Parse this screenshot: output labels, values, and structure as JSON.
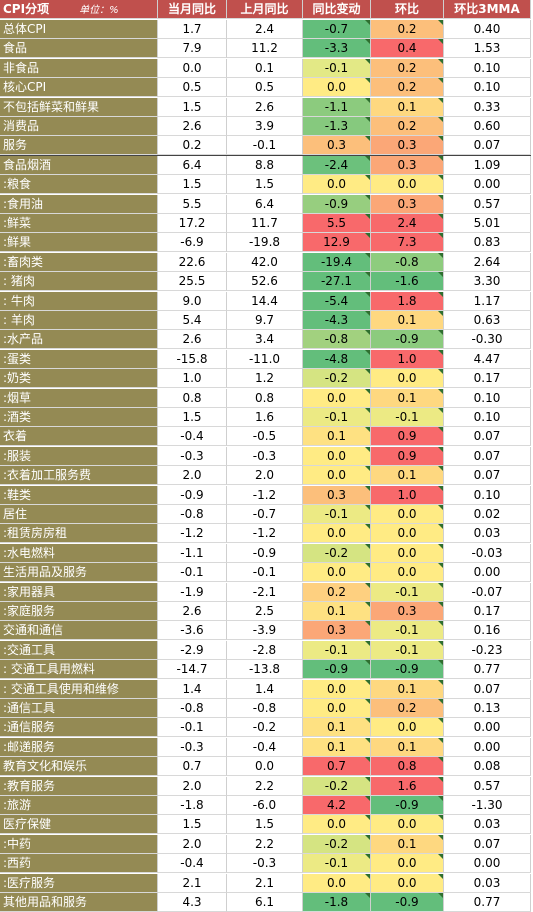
{
  "header": {
    "category": "CPI分项",
    "unit": "单位：%",
    "cols": [
      "当月同比",
      "上月同比",
      "同比变动",
      "环比",
      "环比3MMA"
    ]
  },
  "rows": [
    {
      "label": "总体CPI",
      "v": [
        "1.7",
        "2.4",
        "-0.7",
        "0.2",
        "0.40"
      ],
      "c": [
        "#63be7b",
        "#fcbf7b"
      ],
      "grp": false
    },
    {
      "label": "食品",
      "v": [
        "7.9",
        "11.2",
        "-3.3",
        "0.4",
        "1.53"
      ],
      "c": [
        "#63be7b",
        "#f8696b"
      ],
      "grp": false
    },
    {
      "label": "非食品",
      "v": [
        "0.0",
        "0.1",
        "-0.1",
        "0.2",
        "0.10"
      ],
      "c": [
        "#e3e986",
        "#fcbf7b"
      ],
      "grp": false
    },
    {
      "label": "核心CPI",
      "v": [
        "0.5",
        "0.5",
        "0.0",
        "0.2",
        "0.10"
      ],
      "c": [
        "#ffeb84",
        "#fcbf7b"
      ],
      "grp": true
    },
    {
      "label": "不包括鲜菜和鲜果",
      "v": [
        "1.5",
        "2.6",
        "-1.1",
        "0.1",
        "0.33"
      ],
      "c": [
        "#8ccb7e",
        "#fed880"
      ],
      "grp": false
    },
    {
      "label": "消费品",
      "v": [
        "2.6",
        "3.9",
        "-1.3",
        "0.2",
        "0.60"
      ],
      "c": [
        "#86c97e",
        "#fcbf7b"
      ],
      "grp": false
    },
    {
      "label": "服务",
      "v": [
        "0.2",
        "-0.1",
        "0.3",
        "0.3",
        "0.07"
      ],
      "c": [
        "#fcbf7b",
        "#fba777"
      ],
      "grp": false
    },
    {
      "label": "食品烟酒",
      "v": [
        "6.4",
        "8.8",
        "-2.4",
        "0.3",
        "1.09"
      ],
      "c": [
        "#6cc17c",
        "#fba777"
      ],
      "grp": true
    },
    {
      "label": ":粮食",
      "v": [
        "1.5",
        "1.5",
        "0.0",
        "0.0",
        "0.00"
      ],
      "c": [
        "#ffeb84",
        "#ffeb84"
      ],
      "grp": false
    },
    {
      "label": ":食用油",
      "v": [
        "5.5",
        "6.4",
        "-0.9",
        "0.3",
        "0.57"
      ],
      "c": [
        "#97ce7f",
        "#fba777"
      ],
      "grp": false
    },
    {
      "label": ":鲜菜",
      "v": [
        "17.2",
        "11.7",
        "5.5",
        "2.4",
        "5.01"
      ],
      "c": [
        "#f8696b",
        "#f8696b"
      ],
      "grp": false
    },
    {
      "label": ":鲜果",
      "v": [
        "-6.9",
        "-19.8",
        "12.9",
        "7.3",
        "0.83"
      ],
      "c": [
        "#f8696b",
        "#f8696b"
      ],
      "grp": false
    },
    {
      "label": ":畜肉类",
      "v": [
        "22.6",
        "42.0",
        "-19.4",
        "-0.8",
        "2.64"
      ],
      "c": [
        "#63be7b",
        "#8ecc7e"
      ],
      "grp": false
    },
    {
      "label": ":  猪肉",
      "v": [
        "25.5",
        "52.6",
        "-27.1",
        "-1.6",
        "3.30"
      ],
      "c": [
        "#63be7b",
        "#63be7b"
      ],
      "grp": false
    },
    {
      "label": ":  牛肉",
      "v": [
        "9.0",
        "14.4",
        "-5.4",
        "1.8",
        "1.17"
      ],
      "c": [
        "#63be7b",
        "#f8696b"
      ],
      "grp": false
    },
    {
      "label": ":  羊肉",
      "v": [
        "5.4",
        "9.7",
        "-4.3",
        "0.1",
        "0.63"
      ],
      "c": [
        "#63be7b",
        "#fed880"
      ],
      "grp": false
    },
    {
      "label": ":水产品",
      "v": [
        "2.6",
        "3.4",
        "-0.8",
        "-0.9",
        "-0.30"
      ],
      "c": [
        "#a2d17f",
        "#8ccb7e"
      ],
      "grp": false
    },
    {
      "label": ":蛋类",
      "v": [
        "-15.8",
        "-11.0",
        "-4.8",
        "1.0",
        "4.47"
      ],
      "c": [
        "#63be7b",
        "#f8696b"
      ],
      "grp": false
    },
    {
      "label": ":奶类",
      "v": [
        "1.0",
        "1.2",
        "-0.2",
        "0.0",
        "0.17"
      ],
      "c": [
        "#d5e482",
        "#ffeb84"
      ],
      "grp": false
    },
    {
      "label": ":烟草",
      "v": [
        "0.8",
        "0.8",
        "0.0",
        "0.1",
        "0.10"
      ],
      "c": [
        "#ffeb84",
        "#fed880"
      ],
      "grp": false
    },
    {
      "label": ":酒类",
      "v": [
        "1.5",
        "1.6",
        "-0.1",
        "-0.1",
        "0.10"
      ],
      "c": [
        "#ecea84",
        "#ecea84"
      ],
      "grp": false
    },
    {
      "label": "衣着",
      "v": [
        "-0.4",
        "-0.5",
        "0.1",
        "0.9",
        "0.07"
      ],
      "c": [
        "#fee182",
        "#f8696b"
      ],
      "grp": true
    },
    {
      "label": ":服装",
      "v": [
        "-0.3",
        "-0.3",
        "0.0",
        "0.9",
        "0.07"
      ],
      "c": [
        "#ffeb84",
        "#f8696b"
      ],
      "grp": false
    },
    {
      "label": ":衣着加工服务费",
      "v": [
        "2.0",
        "2.0",
        "0.0",
        "0.1",
        "0.07"
      ],
      "c": [
        "#ffeb84",
        "#fed880"
      ],
      "grp": false
    },
    {
      "label": ":鞋类",
      "v": [
        "-0.9",
        "-1.2",
        "0.3",
        "1.0",
        "0.10"
      ],
      "c": [
        "#fcbf7b",
        "#f8696b"
      ],
      "grp": false
    },
    {
      "label": "居住",
      "v": [
        "-0.8",
        "-0.7",
        "-0.1",
        "0.0",
        "0.02"
      ],
      "c": [
        "#ecea84",
        "#ffeb84"
      ],
      "grp": true
    },
    {
      "label": ":租赁房房租",
      "v": [
        "-1.2",
        "-1.2",
        "0.0",
        "0.0",
        "0.03"
      ],
      "c": [
        "#ffeb84",
        "#ffeb84"
      ],
      "grp": false
    },
    {
      "label": ":水电燃料",
      "v": [
        "-1.1",
        "-0.9",
        "-0.2",
        "0.0",
        "-0.03"
      ],
      "c": [
        "#d5e482",
        "#ffeb84"
      ],
      "grp": false
    },
    {
      "label": "生活用品及服务",
      "v": [
        "-0.1",
        "-0.1",
        "0.0",
        "0.0",
        "0.00"
      ],
      "c": [
        "#ffeb84",
        "#ffeb84"
      ],
      "grp": true
    },
    {
      "label": ":家用器具",
      "v": [
        "-1.9",
        "-2.1",
        "0.2",
        "-0.1",
        "-0.07"
      ],
      "c": [
        "#fed080",
        "#ecea84"
      ],
      "grp": false
    },
    {
      "label": ":家庭服务",
      "v": [
        "2.6",
        "2.5",
        "0.1",
        "0.3",
        "0.17"
      ],
      "c": [
        "#fee182",
        "#fba777"
      ],
      "grp": false
    },
    {
      "label": "交通和通信",
      "v": [
        "-3.6",
        "-3.9",
        "0.3",
        "-0.1",
        "0.16"
      ],
      "c": [
        "#fba777",
        "#ecea84"
      ],
      "grp": true
    },
    {
      "label": ":交通工具",
      "v": [
        "-2.9",
        "-2.8",
        "-0.1",
        "-0.1",
        "-0.23"
      ],
      "c": [
        "#ecea84",
        "#ecea84"
      ],
      "grp": false
    },
    {
      "label": ":  交通工具用燃料",
      "v": [
        "-14.7",
        "-13.8",
        "-0.9",
        "-0.9",
        "0.77"
      ],
      "c": [
        "#63be7b",
        "#63be7b"
      ],
      "grp": false
    },
    {
      "label": ":  交通工具使用和维修",
      "v": [
        "1.4",
        "1.4",
        "0.0",
        "0.1",
        "0.07"
      ],
      "c": [
        "#ffeb84",
        "#fed880"
      ],
      "grp": false
    },
    {
      "label": ":通信工具",
      "v": [
        "-0.8",
        "-0.8",
        "0.0",
        "0.2",
        "0.13"
      ],
      "c": [
        "#ffeb84",
        "#fcbf7b"
      ],
      "grp": false
    },
    {
      "label": ":通信服务",
      "v": [
        "-0.1",
        "-0.2",
        "0.1",
        "0.0",
        "0.00"
      ],
      "c": [
        "#fee182",
        "#ffeb84"
      ],
      "grp": false
    },
    {
      "label": ":邮递服务",
      "v": [
        "-0.3",
        "-0.4",
        "0.1",
        "0.1",
        "0.00"
      ],
      "c": [
        "#fee182",
        "#fed880"
      ],
      "grp": false
    },
    {
      "label": "教育文化和娱乐",
      "v": [
        "0.7",
        "0.0",
        "0.7",
        "0.8",
        "0.08"
      ],
      "c": [
        "#f8696b",
        "#f8696b"
      ],
      "grp": true
    },
    {
      "label": ":教育服务",
      "v": [
        "2.0",
        "2.2",
        "-0.2",
        "1.6",
        "0.57"
      ],
      "c": [
        "#d5e482",
        "#f8696b"
      ],
      "grp": false
    },
    {
      "label": ":旅游",
      "v": [
        "-1.8",
        "-6.0",
        "4.2",
        "-0.9",
        "-1.30"
      ],
      "c": [
        "#f8696b",
        "#63be7b"
      ],
      "grp": false
    },
    {
      "label": "医疗保健",
      "v": [
        "1.5",
        "1.5",
        "0.0",
        "0.0",
        "0.03"
      ],
      "c": [
        "#ffeb84",
        "#ffeb84"
      ],
      "grp": true
    },
    {
      "label": ":中药",
      "v": [
        "2.0",
        "2.2",
        "-0.2",
        "0.1",
        "0.07"
      ],
      "c": [
        "#d5e482",
        "#fed880"
      ],
      "grp": false
    },
    {
      "label": ":西药",
      "v": [
        "-0.4",
        "-0.3",
        "-0.1",
        "0.0",
        "0.00"
      ],
      "c": [
        "#ecea84",
        "#ffeb84"
      ],
      "grp": false
    },
    {
      "label": ":医疗服务",
      "v": [
        "2.1",
        "2.1",
        "0.0",
        "0.0",
        "0.03"
      ],
      "c": [
        "#ffeb84",
        "#ffeb84"
      ],
      "grp": false
    },
    {
      "label": "其他用品和服务",
      "v": [
        "4.3",
        "6.1",
        "-1.8",
        "-0.9",
        "0.77"
      ],
      "c": [
        "#63be7b",
        "#63be7b"
      ],
      "grp": true
    }
  ]
}
